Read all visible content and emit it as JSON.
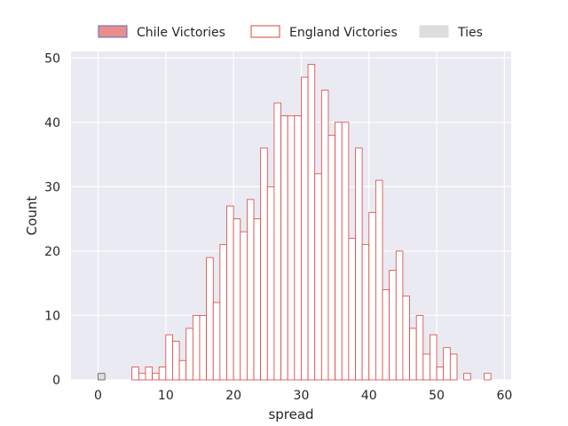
{
  "chart_data": {
    "type": "bar",
    "subtype": "histogram",
    "title": "",
    "xlabel": "spread",
    "ylabel": "Count",
    "xlim": [
      -4,
      61
    ],
    "ylim": [
      0,
      51
    ],
    "xticks": [
      0,
      10,
      20,
      30,
      40,
      50,
      60
    ],
    "yticks": [
      0,
      10,
      20,
      30,
      40,
      50
    ],
    "grid": true,
    "legend": "top-center-outside",
    "bin_width": 1,
    "series": [
      {
        "name": "Chile Victories",
        "color": "#e88f8b",
        "edge_color": "#5b6abf",
        "bins": [],
        "counts": []
      },
      {
        "name": "England Victories",
        "color": "#ffffff",
        "edge_color": "#d9453f",
        "bins": [
          5,
          6,
          7,
          8,
          9,
          10,
          11,
          12,
          13,
          14,
          15,
          16,
          17,
          18,
          19,
          20,
          21,
          22,
          23,
          24,
          25,
          26,
          27,
          28,
          29,
          30,
          31,
          32,
          33,
          34,
          35,
          36,
          37,
          38,
          39,
          40,
          41,
          42,
          43,
          44,
          45,
          46,
          47,
          48,
          49,
          50,
          51,
          52,
          53,
          54,
          55,
          56,
          57
        ],
        "counts": [
          2,
          1,
          2,
          1,
          2,
          7,
          6,
          3,
          8,
          10,
          10,
          19,
          12,
          21,
          27,
          25,
          23,
          28,
          25,
          36,
          30,
          43,
          41,
          41,
          41,
          47,
          49,
          32,
          45,
          38,
          40,
          40,
          22,
          36,
          21,
          26,
          31,
          14,
          17,
          20,
          13,
          8,
          10,
          4,
          7,
          2,
          5,
          4,
          0,
          1,
          0,
          0,
          1
        ]
      },
      {
        "name": "Ties",
        "color": "#dddddd",
        "edge_color": "#555555",
        "bins": [
          0
        ],
        "counts": [
          1
        ]
      }
    ]
  }
}
